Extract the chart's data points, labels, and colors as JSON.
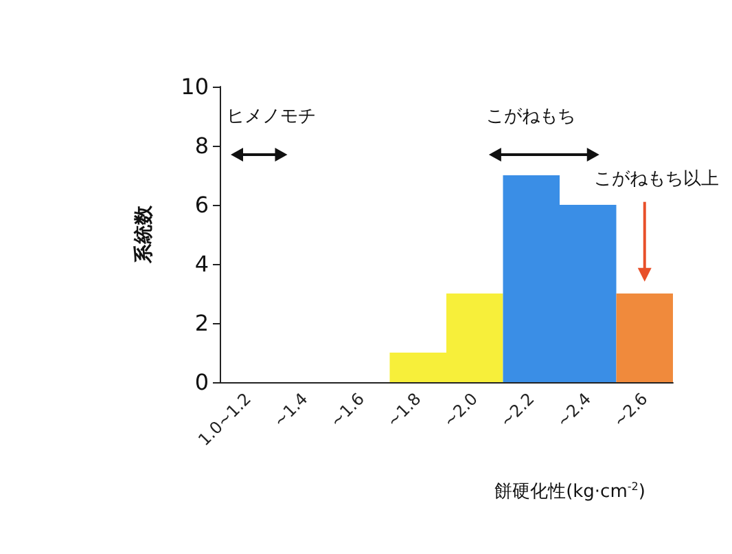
{
  "chart_data": {
    "type": "bar",
    "categories": [
      "1.0~1.2",
      "~1.4",
      "~1.6",
      "~1.8",
      "~2.0",
      "~2.2",
      "~2.4",
      "~2.6"
    ],
    "values": [
      0,
      0,
      0,
      1,
      3,
      7,
      6,
      3
    ],
    "colors": [
      "#f7ef3a",
      "#f7ef3a",
      "#f7ef3a",
      "#f7ef3a",
      "#f7ef3a",
      "#3a8ee6",
      "#3a8ee6",
      "#f08a3c"
    ],
    "xlabel": "餅硬化性(kg·cm$^{-2}$)",
    "ylabel": "系統数",
    "ylim": [
      0,
      10
    ],
    "yticks": [
      0,
      2,
      4,
      6,
      8,
      10
    ],
    "annotations": [
      "ヒメノモチ",
      "こがねもち",
      "こがねもち以上"
    ]
  }
}
